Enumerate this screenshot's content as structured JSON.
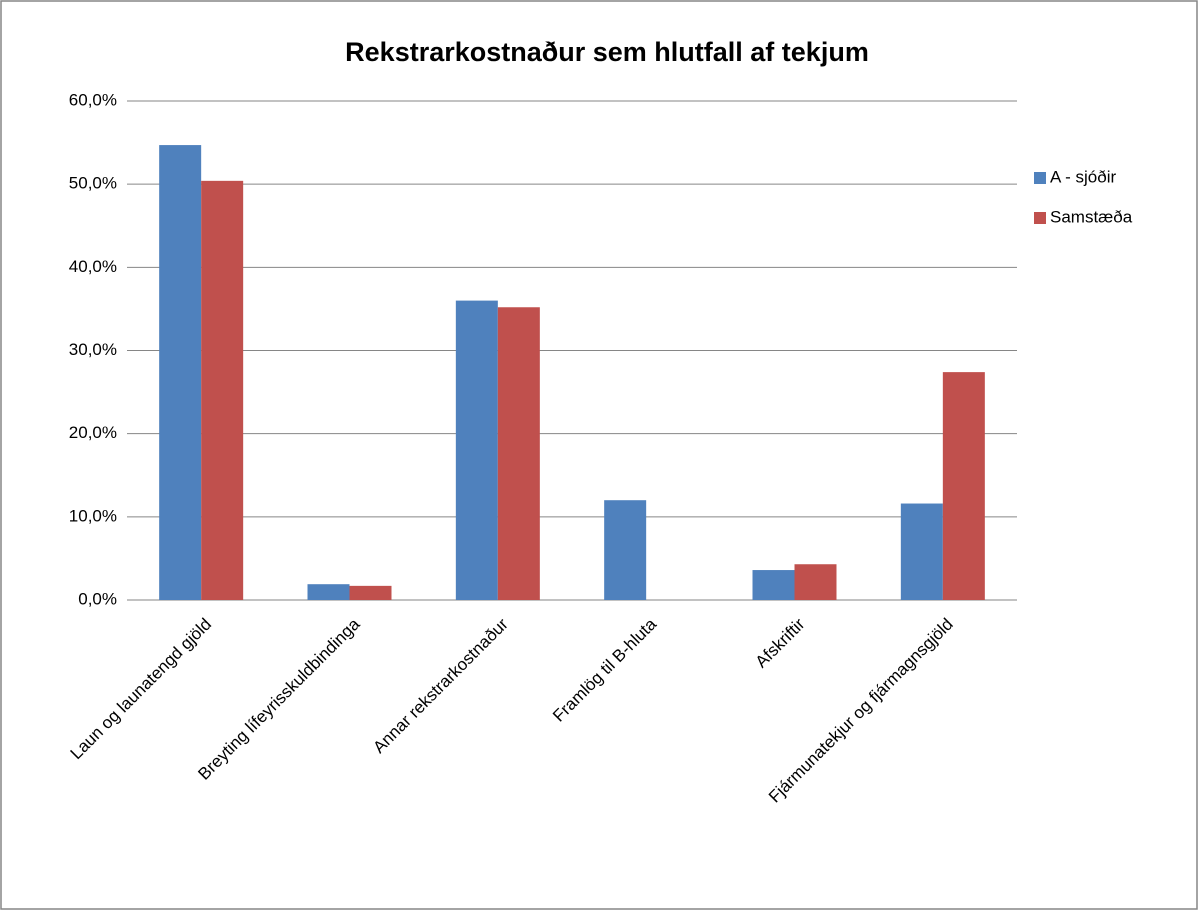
{
  "chart_data": {
    "type": "bar",
    "title": "Rekstrarkostnaður sem hlutfall af tekjum",
    "categories": [
      "Laun og launatengd gjöld",
      "Breyting lífeyrisskuldbindinga",
      "Annar rekstrarkostnaður",
      "Framlög til B-hluta",
      "Afskriftir",
      "Fjármunatekjur og fjármagnsgjöld"
    ],
    "series": [
      {
        "name": "A - sjóðir",
        "color": "#4f81bd",
        "values": [
          54.7,
          1.9,
          36.0,
          12.0,
          3.6,
          11.6
        ]
      },
      {
        "name": "Samstæða",
        "color": "#c0504d",
        "values": [
          50.4,
          1.7,
          35.2,
          0,
          4.3,
          27.4
        ]
      }
    ],
    "ylim": [
      0,
      60
    ],
    "yticks": [
      {
        "value": 0,
        "label": "0,0%"
      },
      {
        "value": 10,
        "label": "10,0%"
      },
      {
        "value": 20,
        "label": "20,0%"
      },
      {
        "value": 30,
        "label": "30,0%"
      },
      {
        "value": 40,
        "label": "40,0%"
      },
      {
        "value": 50,
        "label": "50,0%"
      },
      {
        "value": 60,
        "label": "60,0%"
      }
    ],
    "grid": true,
    "legend": "right"
  }
}
